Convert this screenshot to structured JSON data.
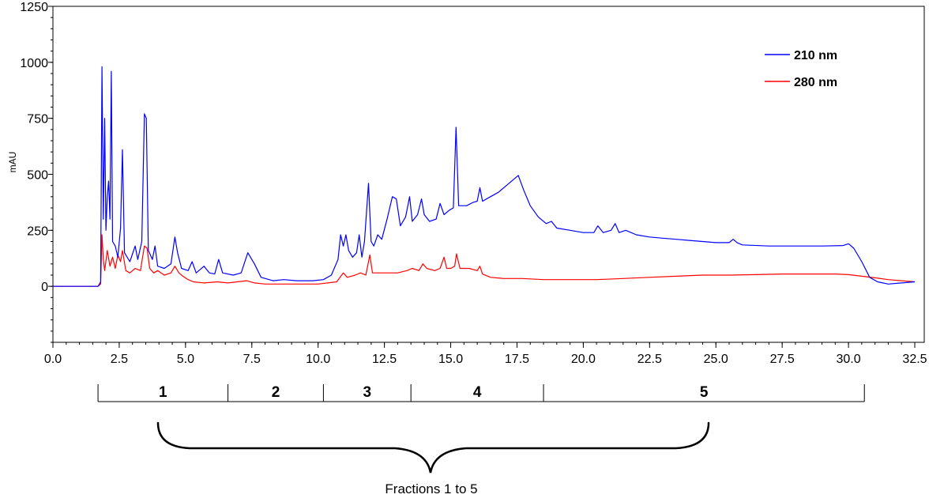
{
  "chart_data": {
    "type": "line",
    "ylabel": "mAU",
    "xlabel": "",
    "xlim": [
      0,
      32.5
    ],
    "ylim": [
      -250,
      1250
    ],
    "x_ticks": [
      "0.0",
      "2.5",
      "5.0",
      "7.5",
      "10.0",
      "12.5",
      "15.0",
      "17.5",
      "20.0",
      "22.5",
      "25.0",
      "27.5",
      "30.0",
      "32.5"
    ],
    "y_ticks": [
      "0",
      "250",
      "500",
      "750",
      "1000",
      "1250"
    ],
    "legend_position": "top-right",
    "series": [
      {
        "name": "210 nm",
        "color": "#0000ff",
        "points": [
          [
            0,
            0
          ],
          [
            1.7,
            0
          ],
          [
            1.8,
            20
          ],
          [
            1.85,
            980
          ],
          [
            1.9,
            300
          ],
          [
            1.95,
            750
          ],
          [
            2.0,
            250
          ],
          [
            2.05,
            400
          ],
          [
            2.1,
            470
          ],
          [
            2.15,
            300
          ],
          [
            2.2,
            960
          ],
          [
            2.25,
            200
          ],
          [
            2.35,
            180
          ],
          [
            2.45,
            130
          ],
          [
            2.55,
            260
          ],
          [
            2.62,
            610
          ],
          [
            2.7,
            150
          ],
          [
            2.9,
            110
          ],
          [
            3.1,
            180
          ],
          [
            3.2,
            120
          ],
          [
            3.35,
            200
          ],
          [
            3.45,
            770
          ],
          [
            3.52,
            750
          ],
          [
            3.6,
            160
          ],
          [
            3.75,
            120
          ],
          [
            3.85,
            180
          ],
          [
            3.95,
            90
          ],
          [
            4.2,
            80
          ],
          [
            4.45,
            100
          ],
          [
            4.6,
            220
          ],
          [
            4.7,
            150
          ],
          [
            4.85,
            80
          ],
          [
            5.1,
            70
          ],
          [
            5.25,
            110
          ],
          [
            5.4,
            60
          ],
          [
            5.7,
            90
          ],
          [
            5.9,
            60
          ],
          [
            6.1,
            55
          ],
          [
            6.25,
            120
          ],
          [
            6.4,
            60
          ],
          [
            6.8,
            50
          ],
          [
            7.1,
            60
          ],
          [
            7.35,
            150
          ],
          [
            7.6,
            100
          ],
          [
            7.85,
            40
          ],
          [
            8.3,
            25
          ],
          [
            8.7,
            30
          ],
          [
            9.2,
            25
          ],
          [
            9.8,
            25
          ],
          [
            10.2,
            30
          ],
          [
            10.5,
            50
          ],
          [
            10.75,
            120
          ],
          [
            10.85,
            230
          ],
          [
            10.95,
            180
          ],
          [
            11.05,
            230
          ],
          [
            11.15,
            160
          ],
          [
            11.3,
            130
          ],
          [
            11.45,
            150
          ],
          [
            11.55,
            230
          ],
          [
            11.65,
            130
          ],
          [
            11.75,
            200
          ],
          [
            11.9,
            460
          ],
          [
            12.0,
            200
          ],
          [
            12.1,
            180
          ],
          [
            12.25,
            230
          ],
          [
            12.4,
            210
          ],
          [
            12.6,
            300
          ],
          [
            12.8,
            400
          ],
          [
            12.95,
            390
          ],
          [
            13.1,
            270
          ],
          [
            13.3,
            310
          ],
          [
            13.45,
            400
          ],
          [
            13.55,
            290
          ],
          [
            13.75,
            320
          ],
          [
            13.9,
            390
          ],
          [
            14.0,
            320
          ],
          [
            14.2,
            290
          ],
          [
            14.45,
            300
          ],
          [
            14.6,
            370
          ],
          [
            14.75,
            320
          ],
          [
            14.95,
            340
          ],
          [
            15.1,
            350
          ],
          [
            15.2,
            710
          ],
          [
            15.3,
            360
          ],
          [
            15.6,
            360
          ],
          [
            15.85,
            375
          ],
          [
            16.0,
            380
          ],
          [
            16.1,
            440
          ],
          [
            16.2,
            380
          ],
          [
            16.5,
            400
          ],
          [
            16.8,
            420
          ],
          [
            17.1,
            450
          ],
          [
            17.4,
            480
          ],
          [
            17.55,
            495
          ],
          [
            17.75,
            430
          ],
          [
            18.0,
            360
          ],
          [
            18.3,
            310
          ],
          [
            18.6,
            280
          ],
          [
            18.8,
            290
          ],
          [
            19.0,
            260
          ],
          [
            19.5,
            250
          ],
          [
            20.0,
            240
          ],
          [
            20.4,
            240
          ],
          [
            20.55,
            270
          ],
          [
            20.75,
            240
          ],
          [
            21.05,
            250
          ],
          [
            21.2,
            280
          ],
          [
            21.35,
            240
          ],
          [
            21.6,
            250
          ],
          [
            22.0,
            230
          ],
          [
            22.5,
            220
          ],
          [
            23.0,
            215
          ],
          [
            23.5,
            210
          ],
          [
            24.0,
            205
          ],
          [
            24.5,
            200
          ],
          [
            25.0,
            195
          ],
          [
            25.5,
            195
          ],
          [
            25.65,
            210
          ],
          [
            25.8,
            195
          ],
          [
            26.0,
            185
          ],
          [
            27.0,
            180
          ],
          [
            28.0,
            180
          ],
          [
            29.0,
            180
          ],
          [
            29.8,
            182
          ],
          [
            30.0,
            190
          ],
          [
            30.2,
            170
          ],
          [
            30.5,
            110
          ],
          [
            30.8,
            40
          ],
          [
            31.1,
            20
          ],
          [
            31.5,
            10
          ],
          [
            32.0,
            15
          ],
          [
            32.5,
            20
          ]
        ]
      },
      {
        "name": "280 nm",
        "color": "#ff0000",
        "points": [
          [
            0,
            0
          ],
          [
            1.7,
            0
          ],
          [
            1.8,
            10
          ],
          [
            1.85,
            230
          ],
          [
            1.9,
            120
          ],
          [
            1.95,
            70
          ],
          [
            2.05,
            160
          ],
          [
            2.15,
            90
          ],
          [
            2.25,
            130
          ],
          [
            2.35,
            80
          ],
          [
            2.45,
            140
          ],
          [
            2.55,
            110
          ],
          [
            2.62,
            160
          ],
          [
            2.75,
            70
          ],
          [
            2.9,
            60
          ],
          [
            3.1,
            80
          ],
          [
            3.3,
            70
          ],
          [
            3.45,
            180
          ],
          [
            3.55,
            170
          ],
          [
            3.65,
            80
          ],
          [
            3.8,
            60
          ],
          [
            3.95,
            70
          ],
          [
            4.2,
            50
          ],
          [
            4.45,
            60
          ],
          [
            4.6,
            90
          ],
          [
            4.75,
            60
          ],
          [
            4.9,
            45
          ],
          [
            5.1,
            30
          ],
          [
            5.3,
            20
          ],
          [
            5.7,
            15
          ],
          [
            6.2,
            20
          ],
          [
            6.6,
            15
          ],
          [
            7.3,
            25
          ],
          [
            7.6,
            15
          ],
          [
            8.0,
            10
          ],
          [
            9.0,
            10
          ],
          [
            10.0,
            10
          ],
          [
            10.7,
            20
          ],
          [
            10.95,
            60
          ],
          [
            11.1,
            40
          ],
          [
            11.4,
            50
          ],
          [
            11.6,
            60
          ],
          [
            11.8,
            50
          ],
          [
            11.95,
            140
          ],
          [
            12.05,
            60
          ],
          [
            12.5,
            60
          ],
          [
            13.0,
            60
          ],
          [
            13.35,
            70
          ],
          [
            13.55,
            80
          ],
          [
            13.8,
            70
          ],
          [
            13.95,
            100
          ],
          [
            14.1,
            80
          ],
          [
            14.4,
            70
          ],
          [
            14.6,
            80
          ],
          [
            14.75,
            130
          ],
          [
            14.85,
            80
          ],
          [
            15.0,
            80
          ],
          [
            15.15,
            90
          ],
          [
            15.22,
            145
          ],
          [
            15.35,
            80
          ],
          [
            15.7,
            80
          ],
          [
            16.0,
            70
          ],
          [
            16.1,
            90
          ],
          [
            16.2,
            55
          ],
          [
            16.5,
            40
          ],
          [
            17.0,
            35
          ],
          [
            17.7,
            35
          ],
          [
            18.5,
            30
          ],
          [
            19.5,
            30
          ],
          [
            20.5,
            30
          ],
          [
            21.5,
            35
          ],
          [
            22.5,
            40
          ],
          [
            23.5,
            45
          ],
          [
            24.5,
            50
          ],
          [
            25.5,
            50
          ],
          [
            26.5,
            52
          ],
          [
            27.5,
            55
          ],
          [
            28.5,
            55
          ],
          [
            29.5,
            55
          ],
          [
            30.0,
            52
          ],
          [
            30.5,
            45
          ],
          [
            31.0,
            38
          ],
          [
            31.5,
            30
          ],
          [
            32.0,
            25
          ],
          [
            32.5,
            20
          ]
        ]
      }
    ],
    "fractions": [
      {
        "label": "1",
        "start": 1.7,
        "end": 6.6
      },
      {
        "label": "2",
        "start": 6.6,
        "end": 10.2
      },
      {
        "label": "3",
        "start": 10.2,
        "end": 13.5
      },
      {
        "label": "4",
        "start": 13.5,
        "end": 18.5
      },
      {
        "label": "5",
        "start": 18.5,
        "end": 30.6
      }
    ],
    "bracket_label": "Fractions 1 to 5"
  }
}
